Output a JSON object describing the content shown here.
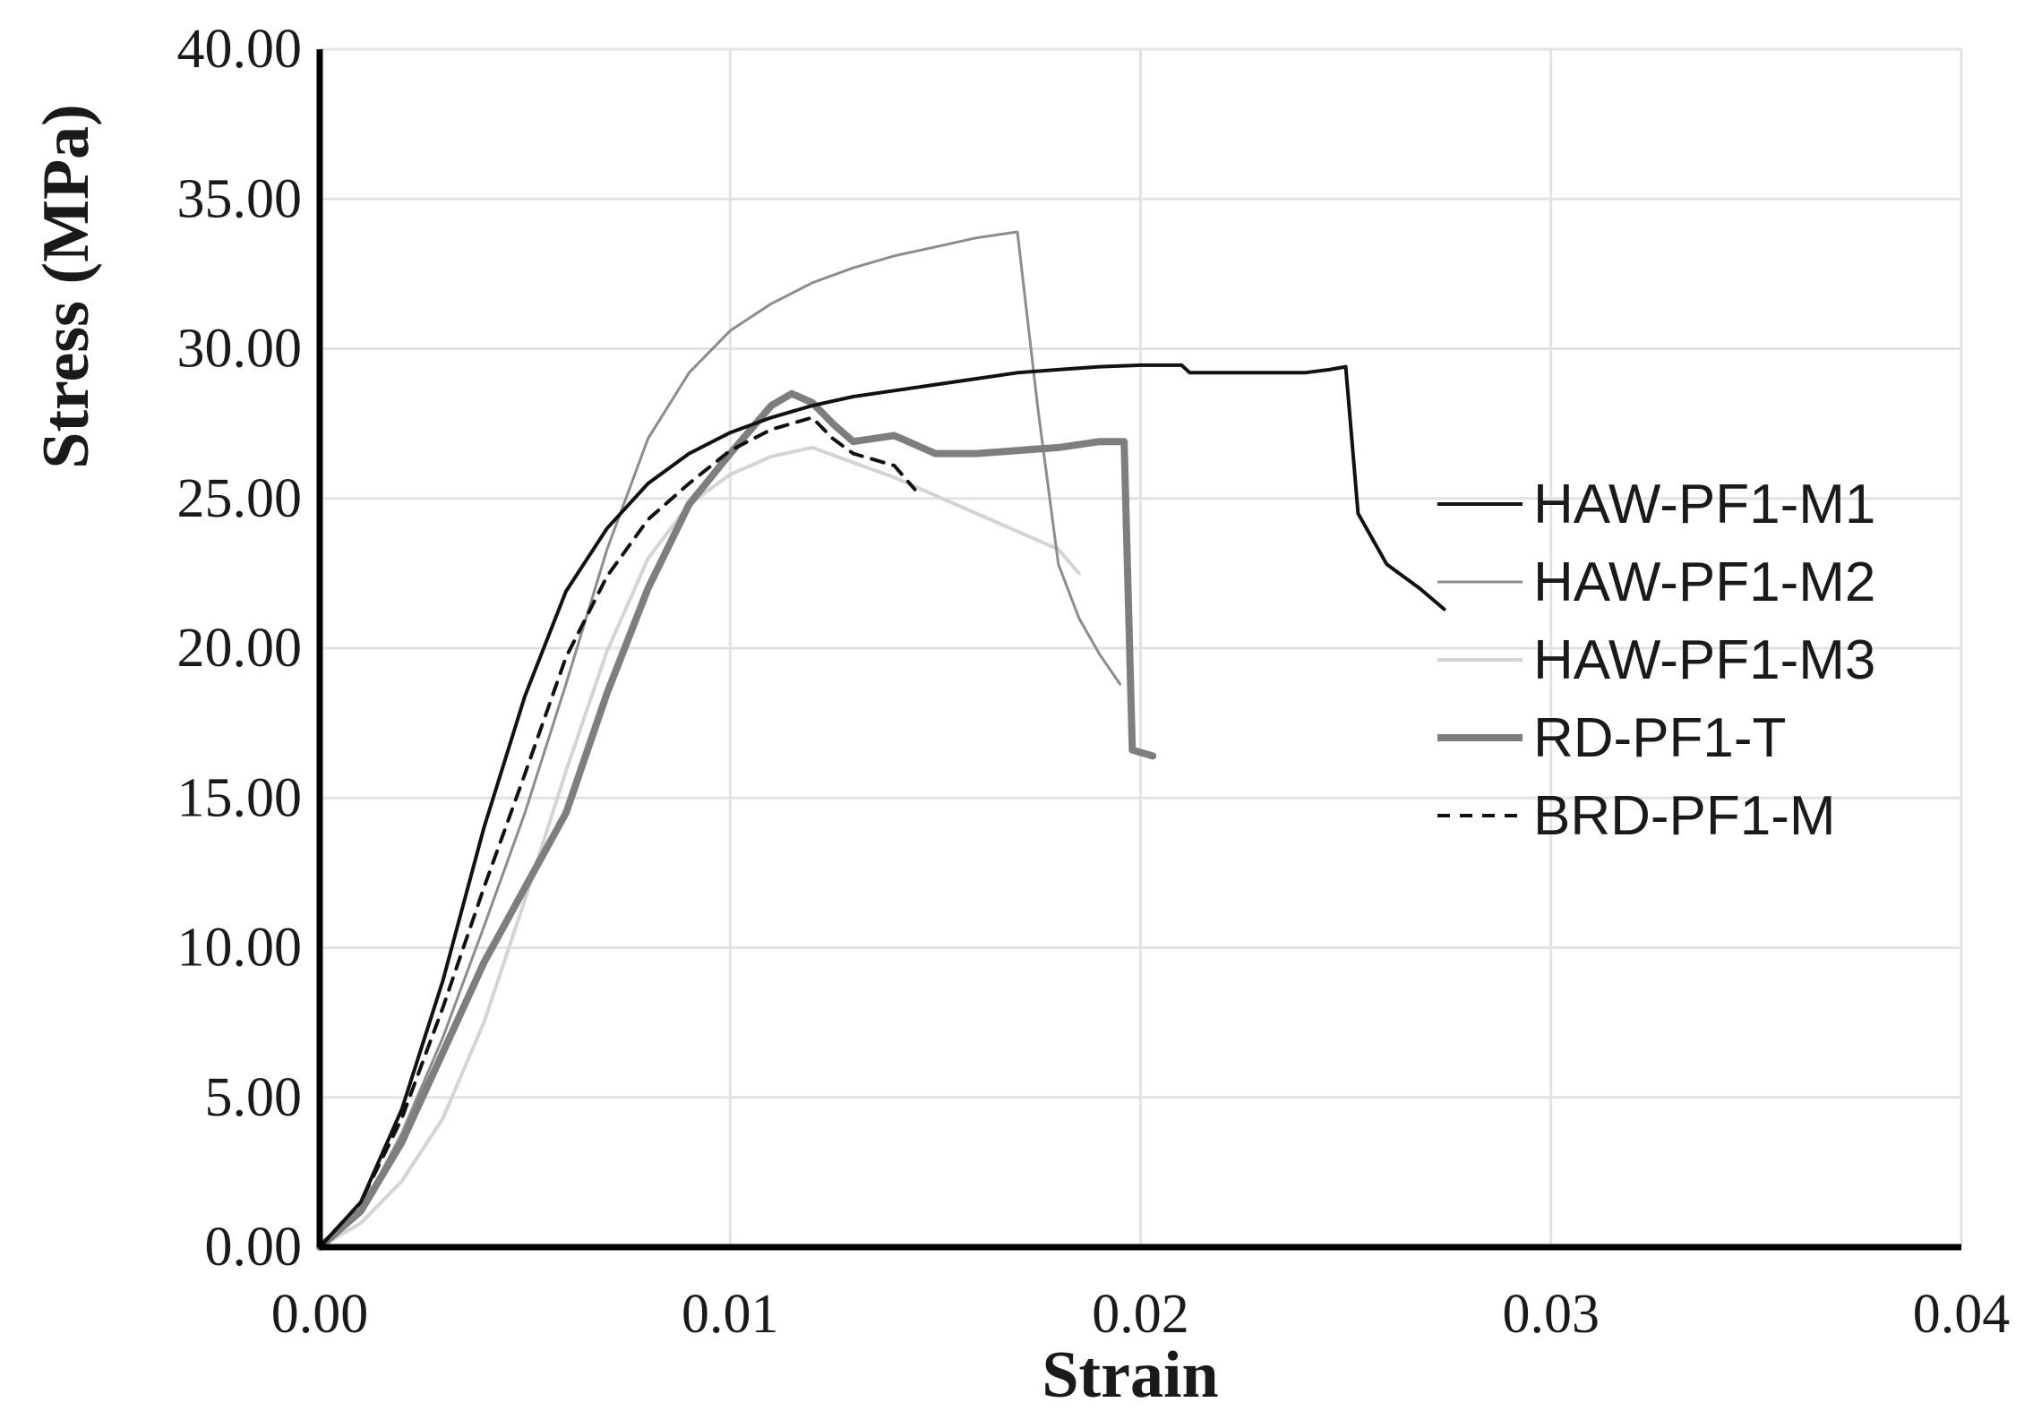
{
  "chart_data": {
    "type": "line",
    "title": "",
    "xlabel": "Strain",
    "ylabel": "Stress (MPa)",
    "xlim": [
      0,
      0.04
    ],
    "ylim": [
      0,
      40
    ],
    "x_ticks": [
      "0.00",
      "0.01",
      "0.02",
      "0.03",
      "0.04"
    ],
    "y_ticks": [
      "0.00",
      "5.00",
      "10.00",
      "15.00",
      "20.00",
      "25.00",
      "30.00",
      "35.00",
      "40.00"
    ],
    "grid": true,
    "legend_position": "right",
    "series": [
      {
        "name": "HAW-PF1-M1",
        "color": "#111111",
        "style": "solid",
        "points": [
          [
            0,
            0
          ],
          [
            0.001,
            1.5
          ],
          [
            0.002,
            4.6
          ],
          [
            0.003,
            8.9
          ],
          [
            0.004,
            14.0
          ],
          [
            0.005,
            18.4
          ],
          [
            0.006,
            21.9
          ],
          [
            0.007,
            24.0
          ],
          [
            0.008,
            25.5
          ],
          [
            0.009,
            26.5
          ],
          [
            0.01,
            27.2
          ],
          [
            0.011,
            27.7
          ],
          [
            0.012,
            28.1
          ],
          [
            0.013,
            28.4
          ],
          [
            0.014,
            28.6
          ],
          [
            0.015,
            28.8
          ],
          [
            0.016,
            29.0
          ],
          [
            0.017,
            29.2
          ],
          [
            0.018,
            29.3
          ],
          [
            0.019,
            29.4
          ],
          [
            0.02,
            29.45
          ],
          [
            0.021,
            29.45
          ],
          [
            0.0212,
            29.2
          ],
          [
            0.022,
            29.2
          ],
          [
            0.023,
            29.2
          ],
          [
            0.024,
            29.2
          ],
          [
            0.0246,
            29.3
          ],
          [
            0.025,
            29.4
          ],
          [
            0.0253,
            24.5
          ],
          [
            0.026,
            22.8
          ],
          [
            0.0268,
            22.0
          ],
          [
            0.0274,
            21.3
          ]
        ]
      },
      {
        "name": "HAW-PF1-M2",
        "color": "#8c8c8c",
        "style": "solid",
        "points": [
          [
            0,
            0
          ],
          [
            0.001,
            1.2
          ],
          [
            0.002,
            3.8
          ],
          [
            0.003,
            7.0
          ],
          [
            0.004,
            10.7
          ],
          [
            0.005,
            14.5
          ],
          [
            0.006,
            18.8
          ],
          [
            0.007,
            23.3
          ],
          [
            0.008,
            27.0
          ],
          [
            0.009,
            29.2
          ],
          [
            0.01,
            30.6
          ],
          [
            0.011,
            31.5
          ],
          [
            0.012,
            32.2
          ],
          [
            0.013,
            32.7
          ],
          [
            0.014,
            33.1
          ],
          [
            0.015,
            33.4
          ],
          [
            0.016,
            33.7
          ],
          [
            0.017,
            33.9
          ],
          [
            0.0175,
            28.0
          ],
          [
            0.018,
            22.8
          ],
          [
            0.0185,
            21.0
          ],
          [
            0.019,
            19.8
          ],
          [
            0.0195,
            18.8
          ]
        ]
      },
      {
        "name": "HAW-PF1-M3",
        "color": "#d4d4d4",
        "style": "solid",
        "points": [
          [
            0,
            0
          ],
          [
            0.001,
            0.8
          ],
          [
            0.002,
            2.2
          ],
          [
            0.003,
            4.3
          ],
          [
            0.004,
            7.5
          ],
          [
            0.005,
            11.6
          ],
          [
            0.006,
            15.9
          ],
          [
            0.007,
            19.9
          ],
          [
            0.008,
            23.0
          ],
          [
            0.009,
            24.8
          ],
          [
            0.01,
            25.8
          ],
          [
            0.011,
            26.4
          ],
          [
            0.012,
            26.7
          ],
          [
            0.013,
            26.2
          ],
          [
            0.014,
            25.7
          ],
          [
            0.015,
            25.1
          ],
          [
            0.016,
            24.5
          ],
          [
            0.017,
            23.9
          ],
          [
            0.018,
            23.3
          ],
          [
            0.0185,
            22.5
          ]
        ]
      },
      {
        "name": "RD-PF1-T",
        "color": "#7e7e7e",
        "style": "thick",
        "points": [
          [
            0,
            0
          ],
          [
            0.001,
            1.2
          ],
          [
            0.002,
            3.5
          ],
          [
            0.003,
            6.5
          ],
          [
            0.004,
            9.5
          ],
          [
            0.005,
            12.0
          ],
          [
            0.006,
            14.5
          ],
          [
            0.007,
            18.5
          ],
          [
            0.008,
            22.0
          ],
          [
            0.009,
            24.8
          ],
          [
            0.01,
            26.5
          ],
          [
            0.011,
            28.1
          ],
          [
            0.0115,
            28.5
          ],
          [
            0.012,
            28.2
          ],
          [
            0.0125,
            27.5
          ],
          [
            0.013,
            26.9
          ],
          [
            0.0135,
            27.0
          ],
          [
            0.014,
            27.1
          ],
          [
            0.0145,
            26.8
          ],
          [
            0.015,
            26.5
          ],
          [
            0.016,
            26.5
          ],
          [
            0.017,
            26.6
          ],
          [
            0.018,
            26.7
          ],
          [
            0.019,
            26.9
          ],
          [
            0.0196,
            26.9
          ],
          [
            0.0198,
            16.6
          ],
          [
            0.0203,
            16.4
          ]
        ]
      },
      {
        "name": "BRD-PF1-M",
        "color": "#111111",
        "style": "dashed",
        "points": [
          [
            0,
            0
          ],
          [
            0.001,
            1.5
          ],
          [
            0.002,
            4.3
          ],
          [
            0.003,
            8.0
          ],
          [
            0.004,
            12.0
          ],
          [
            0.005,
            15.8
          ],
          [
            0.006,
            19.7
          ],
          [
            0.007,
            22.4
          ],
          [
            0.008,
            24.3
          ],
          [
            0.009,
            25.5
          ],
          [
            0.01,
            26.6
          ],
          [
            0.011,
            27.3
          ],
          [
            0.012,
            27.7
          ],
          [
            0.0125,
            27.0
          ],
          [
            0.013,
            26.5
          ],
          [
            0.014,
            26.1
          ],
          [
            0.0145,
            25.3
          ]
        ]
      }
    ]
  }
}
